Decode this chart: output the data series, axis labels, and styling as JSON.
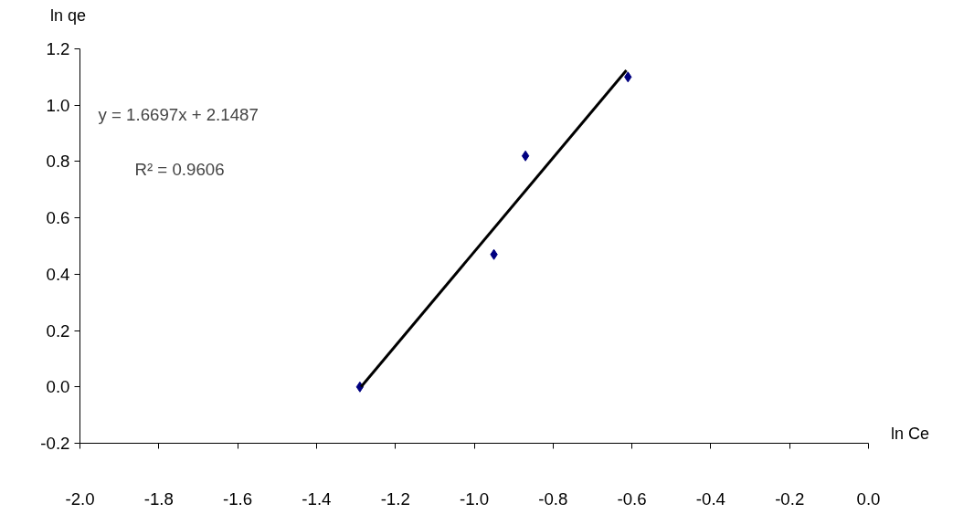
{
  "chart_data": {
    "type": "scatter",
    "xlabel": "ln Ce",
    "ylabel": "ln qe",
    "xlim": [
      -2.0,
      0.0
    ],
    "ylim": [
      -0.2,
      1.2
    ],
    "xticks": [
      {
        "value": -2.0,
        "label": "-2.0"
      },
      {
        "value": -1.8,
        "label": "-1.8"
      },
      {
        "value": -1.6,
        "label": "-1.6"
      },
      {
        "value": -1.4,
        "label": "-1.4"
      },
      {
        "value": -1.2,
        "label": "-1.2"
      },
      {
        "value": -1.0,
        "label": "-1.0"
      },
      {
        "value": -0.8,
        "label": "-0.8"
      },
      {
        "value": -0.6,
        "label": "-0.6"
      },
      {
        "value": -0.4,
        "label": "-0.4"
      },
      {
        "value": -0.2,
        "label": "-0.2"
      },
      {
        "value": 0.0,
        "label": "0.0"
      }
    ],
    "yticks": [
      {
        "value": -0.2,
        "label": "-0.2"
      },
      {
        "value": 0.0,
        "label": "0.0"
      },
      {
        "value": 0.2,
        "label": "0.2"
      },
      {
        "value": 0.4,
        "label": "0.4"
      },
      {
        "value": 0.6,
        "label": "0.6"
      },
      {
        "value": 0.8,
        "label": "0.8"
      },
      {
        "value": 1.0,
        "label": "1.0"
      },
      {
        "value": 1.2,
        "label": "1.2"
      }
    ],
    "grid": false,
    "marker": "diamond",
    "series": [
      {
        "color": "#000080",
        "x": [
          -1.29,
          -0.95,
          -0.87,
          -0.61
        ],
        "values": [
          0.0,
          0.47,
          0.82,
          1.1
        ]
      },
      {
        "type": "line",
        "color": "#000000",
        "x": [
          -1.287,
          -0.614
        ],
        "values": [
          0.0,
          1.124
        ],
        "marker": "none"
      }
    ],
    "annotations": [
      "y = 1.6697x + 2.1487",
      "R² = 0.9606"
    ]
  }
}
